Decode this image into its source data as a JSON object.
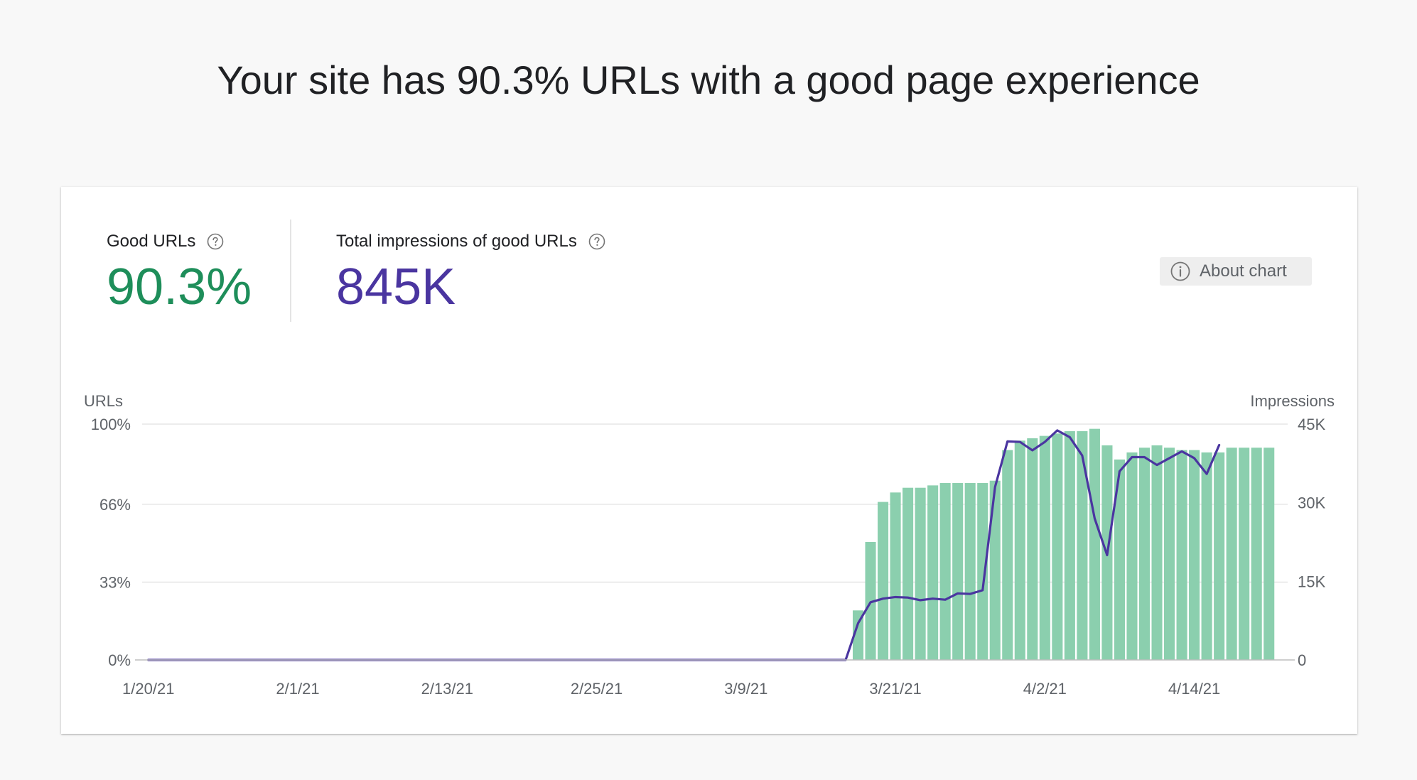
{
  "headline": "Your site has 90.3% URLs with a good page experience",
  "metrics": {
    "good_urls": {
      "label": "Good URLs",
      "value": "90.3%",
      "color": "#1e8e5a"
    },
    "impressions": {
      "label": "Total impressions of good URLs",
      "value": "845K",
      "color": "#4a35a0"
    }
  },
  "about_chart": {
    "label": "About chart",
    "icon": "info-icon"
  },
  "colors": {
    "bar": "#8bcfae",
    "line": "#4a35a0",
    "grid": "#e6e6e6",
    "axis": "#bdbdbd"
  },
  "chart_data": {
    "type": "bar",
    "left_axis": {
      "title": "URLs",
      "ticks": [
        "0%",
        "33%",
        "66%",
        "100%"
      ],
      "tick_values": [
        0,
        33,
        66,
        100
      ],
      "range": [
        0,
        100
      ]
    },
    "right_axis": {
      "title": "Impressions",
      "ticks": [
        "0",
        "15K",
        "30K",
        "45K"
      ],
      "tick_values": [
        0,
        15000,
        30000,
        45000
      ],
      "range": [
        0,
        45000
      ]
    },
    "x_ticks": [
      "1/20/21",
      "2/1/21",
      "2/13/21",
      "2/25/21",
      "3/9/21",
      "3/21/21",
      "4/2/21",
      "4/14/21"
    ],
    "x_start": "1/20/21",
    "x_end": "4/21/21",
    "grid": true,
    "series": [
      {
        "name": "Good URLs",
        "kind": "bar",
        "axis": "left",
        "start": "3/18/21",
        "values": [
          21,
          50,
          67,
          71,
          73,
          73,
          74,
          75,
          75,
          75,
          75,
          76,
          89,
          93,
          94,
          95,
          96,
          97,
          97,
          98,
          91,
          85,
          88,
          90,
          91,
          90,
          89,
          89,
          88,
          88,
          90,
          90,
          90,
          90
        ]
      },
      {
        "name": "Impressions",
        "kind": "line",
        "axis": "right",
        "start": "1/20/21",
        "values": [
          0,
          0,
          0,
          0,
          0,
          0,
          0,
          0,
          0,
          0,
          0,
          0,
          0,
          0,
          0,
          0,
          0,
          0,
          0,
          0,
          0,
          0,
          0,
          0,
          0,
          0,
          0,
          0,
          0,
          0,
          0,
          0,
          0,
          0,
          0,
          0,
          0,
          0,
          0,
          0,
          0,
          0,
          0,
          0,
          0,
          0,
          0,
          0,
          0,
          0,
          0,
          0,
          0,
          0,
          0,
          0,
          0,
          7000,
          11000,
          11700,
          12000,
          11900,
          11400,
          11700,
          11500,
          12700,
          12600,
          13300,
          33000,
          41700,
          41600,
          40000,
          41600,
          43800,
          42500,
          39000,
          27000,
          20000,
          36000,
          38700,
          38700,
          37200,
          38500,
          39800,
          38500,
          35500,
          41000
        ]
      }
    ]
  }
}
